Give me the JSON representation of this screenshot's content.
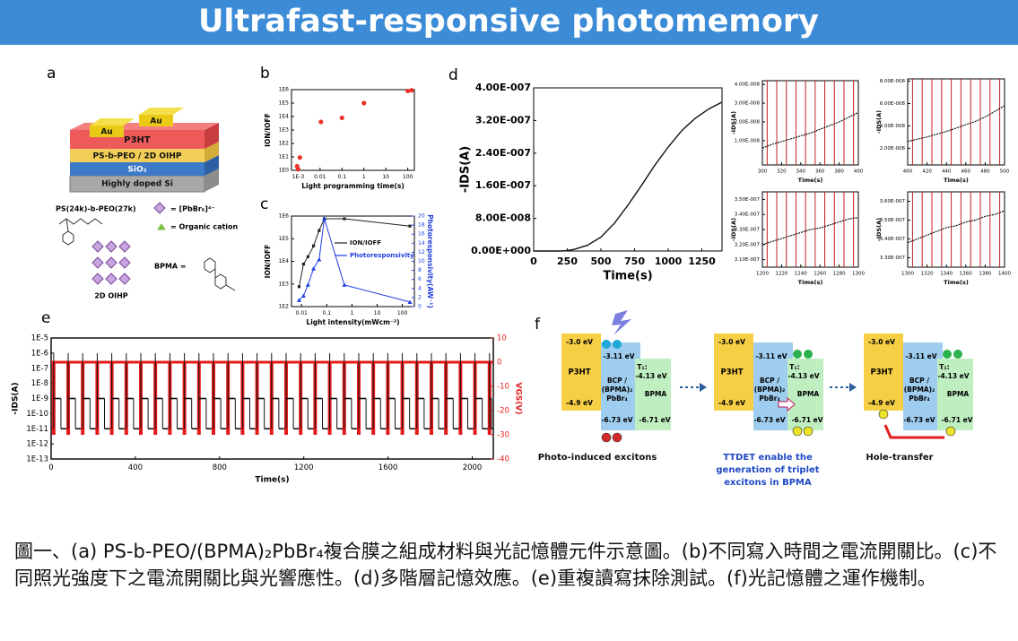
{
  "header": {
    "title": "Ultrafast-responsive photomemory"
  },
  "panel_labels": [
    "a",
    "b",
    "c",
    "d",
    "e",
    "f"
  ],
  "panel_a": {
    "layers": [
      "Au",
      "Au",
      "P3HT",
      "PS-b-PEO / 2D OIHP",
      "SiO₂",
      "Highly doped Si"
    ],
    "polymer": "PS(24k)-b-PEO(27k)",
    "octahedron": "= [PbBr₆]⁴⁻",
    "cation": "= Organic cation",
    "bpma": "BPMA =",
    "oihp": "2D OIHP"
  },
  "panel_b": {
    "type": "scatter",
    "xlabel": "Light programming time(s)",
    "ylabel": "ION/IOFF",
    "xlog": true,
    "ylog": true,
    "xlim": [
      0.0005,
      200
    ],
    "ylim": [
      1,
      1000000
    ],
    "xticks": [
      {
        "value": 0.001,
        "label": "1E-3"
      },
      0.01,
      0.1,
      1,
      10,
      100
    ],
    "yticks": [
      {
        "value": 1,
        "label": "1E0"
      },
      {
        "value": 10,
        "label": "1E1"
      },
      {
        "value": 100,
        "label": "1E2"
      },
      {
        "value": 1000,
        "label": "1E3"
      },
      {
        "value": 10000,
        "label": "1E4"
      },
      {
        "value": 100000,
        "label": "1E5"
      },
      {
        "value": 1000000,
        "label": "1E6"
      }
    ],
    "x": [
      0.0009,
      0.001,
      0.0012,
      0.011,
      0.1,
      1,
      100,
      150
    ],
    "values": [
      2,
      1.2,
      9,
      4000,
      8000,
      100000,
      800000,
      900000
    ],
    "color": "#e8332a"
  },
  "panel_c": {
    "type": "line",
    "xlabel": "Light intensity(mWcm⁻²)",
    "ylabel": "ION/IOFF",
    "y2label": "Photoresponsivity(AW⁻¹)",
    "xlog": true,
    "ylog": true,
    "xlim": [
      0.004,
      300
    ],
    "ylim": [
      100,
      1000000
    ],
    "y2lim": [
      0,
      20
    ],
    "xticks": [
      0.01,
      0.1,
      1,
      10,
      100
    ],
    "yticks": [
      {
        "value": 100,
        "label": "1E2"
      },
      {
        "value": 1000,
        "label": "1E3"
      },
      {
        "value": 10000,
        "label": "1E4"
      },
      {
        "value": 100000,
        "label": "1E5"
      },
      {
        "value": 1000000,
        "label": "1E6"
      }
    ],
    "y2ticks": [
      0,
      2,
      4,
      6,
      8,
      10,
      12,
      14,
      16,
      18,
      20
    ],
    "x": [
      0.008,
      0.012,
      0.018,
      0.03,
      0.05,
      0.08,
      0.5,
      200
    ],
    "series": [
      {
        "name": "ION/IOFF",
        "color": "#222222",
        "values": [
          760,
          7600,
          16000,
          48000,
          230000,
          760000,
          760000,
          360000
        ]
      },
      {
        "name": "Photoresponsivity",
        "color": "#1f3fe0",
        "axis": "y2",
        "values": [
          1.4,
          2.4,
          4.8,
          8.4,
          10.4,
          19.4,
          4.8,
          1
        ]
      }
    ]
  },
  "panel_d": {
    "type": "line",
    "xlabel": "Time(s)",
    "ylabel": "-IDS(A)",
    "xlim": [
      0,
      1400
    ],
    "ylim": [
      0,
      4e-07
    ],
    "xticks": [
      0,
      250,
      500,
      750,
      1000,
      1250
    ],
    "yticks": [
      {
        "value": 0,
        "label": "0.00E+000"
      },
      {
        "value": 8e-08,
        "label": "8.00E-008"
      },
      {
        "value": 1.6e-07,
        "label": "1.60E-007"
      },
      {
        "value": 2.4e-07,
        "label": "2.40E-007"
      },
      {
        "value": 3.2e-07,
        "label": "3.20E-007"
      },
      {
        "value": 4e-07,
        "label": "4.00E-007"
      }
    ],
    "x": [
      0,
      100,
      200,
      250,
      300,
      400,
      500,
      600,
      700,
      800,
      900,
      1000,
      1100,
      1200,
      1300,
      1400
    ],
    "values": [
      0,
      0,
      0,
      1e-09,
      4e-09,
      1.4e-08,
      3.4e-08,
      6.8e-08,
      1.12e-07,
      1.6e-07,
      2.1e-07,
      2.55e-07,
      2.95e-07,
      3.25e-07,
      3.48e-07,
      3.65e-07
    ],
    "color": "#111111",
    "insets": [
      {
        "xlabel": "Time(s)",
        "ylabel": "-IDS(A)",
        "xlim": [
          300,
          400
        ],
        "ylim": [
          -3e-09,
          4.2e-08
        ],
        "xticks": [
          300,
          320,
          340,
          360,
          380,
          400
        ],
        "yticks": [
          {
            "value": 1e-08,
            "label": "1.00E-008"
          },
          {
            "value": 2e-08,
            "label": "2.00E-008"
          },
          {
            "value": 3e-08,
            "label": "3.00E-008"
          },
          {
            "value": 4e-08,
            "label": "4.00E-008"
          }
        ],
        "pulses": [
          305,
          315,
          325,
          335,
          345,
          355,
          365,
          375,
          385,
          395
        ],
        "x": [
          300,
          310,
          320,
          330,
          340,
          350,
          360,
          370,
          380,
          390,
          400
        ],
        "values": [
          6e-09,
          8e-09,
          9.5e-09,
          1.1e-08,
          1.25e-08,
          1.4e-08,
          1.6e-08,
          1.8e-08,
          2e-08,
          2.25e-08,
          2.5e-08
        ]
      },
      {
        "xlabel": "Time(s)",
        "ylabel": "-IDS(A)",
        "xlim": [
          400,
          500
        ],
        "ylim": [
          5e-09,
          8.2e-08
        ],
        "xticks": [
          400,
          420,
          440,
          460,
          480,
          500
        ],
        "yticks": [
          {
            "value": 2e-08,
            "label": "2.00E-008"
          },
          {
            "value": 4e-08,
            "label": "4.00E-008"
          },
          {
            "value": 6e-08,
            "label": "6.00E-008"
          },
          {
            "value": 8e-08,
            "label": "8.00E-008"
          }
        ],
        "pulses": [
          405,
          415,
          425,
          435,
          445,
          455,
          465,
          475,
          485,
          495
        ],
        "x": [
          400,
          410,
          420,
          430,
          440,
          450,
          460,
          470,
          480,
          490,
          500
        ],
        "values": [
          2.6e-08,
          2.8e-08,
          3e-08,
          3.25e-08,
          3.5e-08,
          3.8e-08,
          4.1e-08,
          4.4e-08,
          4.8e-08,
          5.3e-08,
          5.8e-08
        ]
      },
      {
        "xlabel": "Time(s)",
        "ylabel": "-IDS(A)",
        "xlim": [
          1200,
          1300
        ],
        "ylim": [
          3.05e-07,
          3.55e-07
        ],
        "xticks": [
          1200,
          1220,
          1240,
          1260,
          1280,
          1300
        ],
        "yticks": [
          {
            "value": 3.1e-07,
            "label": "3.10E-007"
          },
          {
            "value": 3.2e-07,
            "label": "3.20E-007"
          },
          {
            "value": 3.3e-07,
            "label": "3.30E-007"
          },
          {
            "value": 3.4e-07,
            "label": "3.40E-007"
          },
          {
            "value": 3.5e-07,
            "label": "3.50E-007"
          }
        ],
        "pulses": [
          1205,
          1215,
          1225,
          1235,
          1245,
          1255,
          1265,
          1275,
          1285,
          1295
        ],
        "x": [
          1200,
          1210,
          1220,
          1230,
          1240,
          1250,
          1260,
          1270,
          1280,
          1290,
          1300
        ],
        "values": [
          3.2e-07,
          3.22e-07,
          3.24e-07,
          3.26e-07,
          3.28e-07,
          3.3e-07,
          3.31e-07,
          3.33e-07,
          3.35e-07,
          3.37e-07,
          3.38e-07
        ]
      },
      {
        "xlabel": "Time(s)",
        "ylabel": "-IDS(A)",
        "xlim": [
          1300,
          1400
        ],
        "ylim": [
          3.25e-07,
          3.65e-07
        ],
        "xticks": [
          1300,
          1320,
          1340,
          1360,
          1380,
          1400
        ],
        "yticks": [
          {
            "value": 3.3e-07,
            "label": "3.30E-007"
          },
          {
            "value": 3.4e-07,
            "label": "3.40E-007"
          },
          {
            "value": 3.5e-07,
            "label": "3.50E-007"
          },
          {
            "value": 3.6e-07,
            "label": "3.60E-007"
          }
        ],
        "pulses": [
          1305,
          1315,
          1325,
          1335,
          1345,
          1355,
          1365,
          1375,
          1385,
          1395
        ],
        "x": [
          1300,
          1310,
          1320,
          1330,
          1340,
          1350,
          1360,
          1370,
          1380,
          1390,
          1400
        ],
        "values": [
          3.38e-07,
          3.4e-07,
          3.42e-07,
          3.44e-07,
          3.46e-07,
          3.47e-07,
          3.49e-07,
          3.5e-07,
          3.52e-07,
          3.53e-07,
          3.55e-07
        ]
      }
    ]
  },
  "panel_e": {
    "type": "pulse",
    "xlabel": "Time(s)",
    "ylabel": "-IDS(A)",
    "y2label": "VGS(V)",
    "ylog": true,
    "xlim": [
      0,
      2100
    ],
    "ylim": [
      1e-13,
      1e-05
    ],
    "y2lim": [
      -40,
      10
    ],
    "xticks": [
      0,
      400,
      800,
      1200,
      1600,
      2000
    ],
    "yticks": [
      {
        "value": 1e-13,
        "label": "1E-13"
      },
      {
        "value": 1e-12,
        "label": "1E-12"
      },
      {
        "value": 1e-11,
        "label": "1E-11"
      },
      {
        "value": 1e-10,
        "label": "1E-10"
      },
      {
        "value": 1e-09,
        "label": "1E-9"
      },
      {
        "value": 1e-08,
        "label": "1E-8"
      },
      {
        "value": 1e-07,
        "label": "1E-7"
      },
      {
        "value": 1e-06,
        "label": "1E-6"
      },
      {
        "value": 1e-05,
        "label": "1E-5"
      }
    ],
    "y2ticks": [
      -40,
      -30,
      -20,
      -10,
      0,
      10
    ],
    "pulse_times": [
      12,
      81,
      150,
      219,
      288,
      357,
      426,
      495,
      564,
      633,
      702,
      771,
      840,
      909,
      978,
      1047,
      1116,
      1185,
      1254,
      1323,
      1392,
      1461,
      1530,
      1599,
      1668,
      1737,
      1806,
      1875,
      1944,
      2013,
      2082
    ],
    "levels": {
      "on": 1e-06,
      "written": 1e-09,
      "erased": 1e-11
    },
    "voltage": {
      "base": 0,
      "pulse": -30
    },
    "current_color": "#111111",
    "voltage_color": "#e51a1a"
  },
  "panel_f": {
    "stages": [
      {
        "cb_p3ht": "-3.0 eV",
        "p3ht": "P3HT",
        "vb_p3ht": "-4.9 eV",
        "cb_bcp": "-3.11 eV",
        "bcp": [
          "BCP /",
          "(BPMA)₂",
          "PbBr₄"
        ],
        "vb_bcp": "-6.73 eV",
        "t1": [
          "T₁:",
          "-4.13 eV"
        ],
        "bpma": "BPMA",
        "vb_bpma": "-6.71 eV",
        "caption": [
          "Photo-induced excitons"
        ]
      },
      {
        "cb_p3ht": "-3.0 eV",
        "p3ht": "P3HT",
        "vb_p3ht": "-4.9 eV",
        "cb_bcp": "-3.11 eV",
        "bcp": [
          "BCP /",
          "(BPMA)₂",
          "PbBr₄"
        ],
        "vb_bcp": "-6.73 eV",
        "t1": [
          "T₁:",
          "-4.13 eV"
        ],
        "bpma": "BPMA",
        "vb_bpma": "-6.71 eV",
        "caption": [
          "TTDET enable the",
          "generation of triplet",
          "excitons in BPMA"
        ]
      },
      {
        "cb_p3ht": "-3.0 eV",
        "p3ht": "P3HT",
        "vb_p3ht": "-4.9 eV",
        "cb_bcp": "-3.11 eV",
        "bcp": [
          "BCP /",
          "(BPMA)₂",
          "PbBr₄"
        ],
        "vb_bcp": "-6.73 eV",
        "t1": [
          "T₁:",
          "-4.13 eV"
        ],
        "bpma": "BPMA",
        "vb_bpma": "-6.71 eV",
        "caption": [
          "Hole-transfer"
        ]
      }
    ]
  },
  "caption": "圖一、(a) PS-b-PEO/(BPMA)₂PbBr₄複合膜之組成材料與光記憶體元件示意圖。(b)不同寫入時間之電流開關比。(c)不同照光強度下之電流開關比與光響應性。(d)多階層記憶效應。(e)重複讀寫抹除測試。(f)光記憶體之運作機制。"
}
